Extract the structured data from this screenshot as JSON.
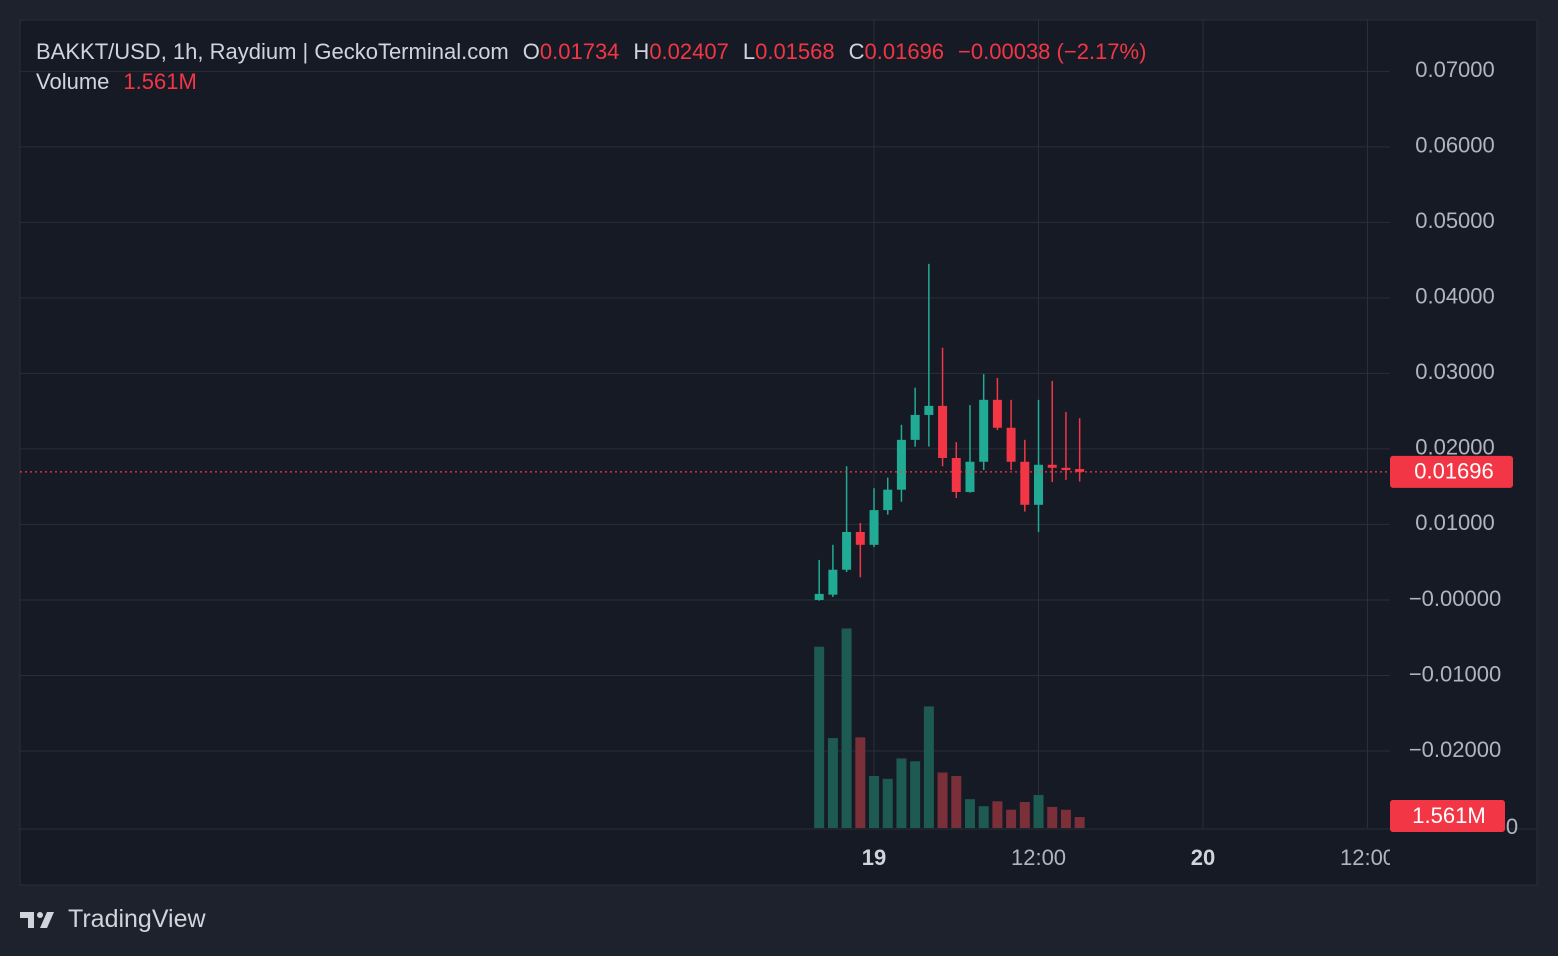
{
  "chart_data": {
    "type": "candlestick",
    "legend": {
      "title": "BAKKT/USD, 1h, Raydium | GeckoTerminal.com",
      "fields": [
        {
          "key": "O",
          "value": "0.01734"
        },
        {
          "key": "H",
          "value": "0.02407"
        },
        {
          "key": "L",
          "value": "0.01568"
        },
        {
          "key": "C",
          "value": "0.01696"
        }
      ],
      "change": "−0.00038 (−2.17%)",
      "volume_title": "Volume",
      "volume_value": "1.561M"
    },
    "x": [
      -4,
      -3,
      -2,
      -1,
      0,
      1,
      2,
      3,
      4,
      5,
      6,
      7,
      8,
      9,
      10,
      11,
      12,
      13,
      14,
      15
    ],
    "open": [
      0.0,
      0.0007,
      0.004,
      0.009,
      0.0073,
      0.0119,
      0.0146,
      0.0212,
      0.0245,
      0.0257,
      0.0188,
      0.0143,
      0.0183,
      0.0265,
      0.0228,
      0.0183,
      0.0126,
      0.0179,
      0.0175,
      0.01734
    ],
    "high": [
      0.0053,
      0.0073,
      0.0177,
      0.0102,
      0.0148,
      0.0162,
      0.0232,
      0.0281,
      0.0445,
      0.0334,
      0.0209,
      0.0258,
      0.0299,
      0.0294,
      0.0265,
      0.0212,
      0.0265,
      0.029,
      0.0249,
      0.02407
    ],
    "low": [
      -0.0001,
      0.0004,
      0.0037,
      0.003,
      0.007,
      0.0113,
      0.013,
      0.0203,
      0.0203,
      0.0177,
      0.0135,
      0.0142,
      0.0172,
      0.0225,
      0.0172,
      0.0117,
      0.009,
      0.0156,
      0.0159,
      0.01568
    ],
    "close": [
      0.0008,
      0.004,
      0.009,
      0.0073,
      0.0119,
      0.0146,
      0.0212,
      0.0245,
      0.0257,
      0.0188,
      0.0143,
      0.0183,
      0.0265,
      0.0228,
      0.0183,
      0.0126,
      0.0179,
      0.0175,
      0.0172,
      0.01696
    ],
    "volume": [
      25800000,
      12800000,
      28400000,
      12900000,
      7400000,
      7000000,
      9900000,
      9500000,
      17300000,
      7900000,
      7400000,
      4100000,
      3100000,
      3800000,
      2600000,
      3700000,
      4700000,
      3000000,
      2600000,
      1561000
    ],
    "up_color": "#22ab94",
    "down_color": "#f23645",
    "volume_up_color": "#1d5b52",
    "volume_down_color": "#7b2f39",
    "last_price": {
      "value": 0.01696,
      "label": "0.01696"
    },
    "last_volume": {
      "value": 1561000,
      "label": "1.561M"
    },
    "xlim": [
      -62.3,
      37.64
    ],
    "xticks": [
      {
        "value": 0,
        "label": "19"
      },
      {
        "value": 12,
        "label": "12:00"
      },
      {
        "value": 24,
        "label": "20"
      },
      {
        "value": 36,
        "label": "12:00"
      }
    ],
    "ylim": [
      -0.0302,
      0.0768
    ],
    "yticks": [
      {
        "value": 0.07,
        "label": "0.07000"
      },
      {
        "value": 0.06,
        "label": "0.06000"
      },
      {
        "value": 0.05,
        "label": "0.05000"
      },
      {
        "value": 0.04,
        "label": "0.04000"
      },
      {
        "value": 0.03,
        "label": "0.03000"
      },
      {
        "value": 0.02,
        "label": "0.02000"
      },
      {
        "value": 0.01,
        "label": "0.01000"
      },
      {
        "value": 0,
        "label": "−0.00000"
      },
      {
        "value": -0.01,
        "label": "−0.01000"
      },
      {
        "value": -0.02,
        "label": "−0.02000"
      }
    ],
    "vlim": [
      0,
      115000000
    ],
    "vticks": [
      0
    ],
    "grid": true,
    "brand": "TradingView"
  }
}
